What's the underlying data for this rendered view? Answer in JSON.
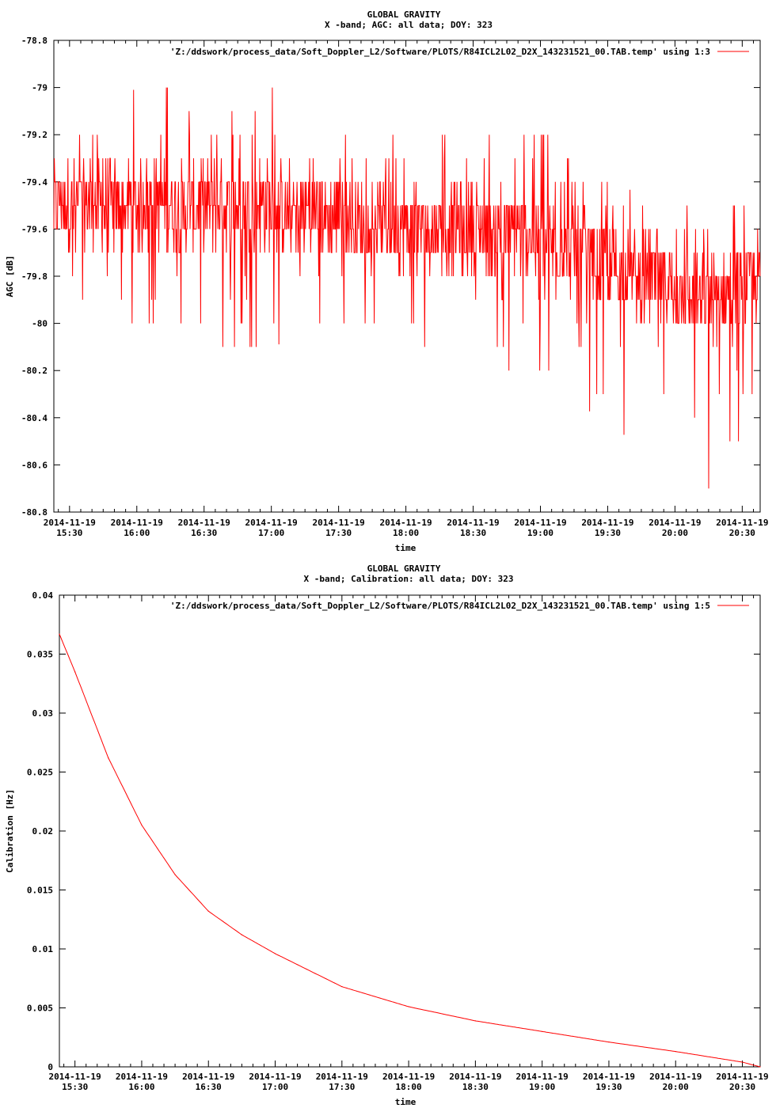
{
  "chart_data": [
    {
      "type": "line",
      "title": "GLOBAL GRAVITY",
      "subtitle": "X -band; AGC: all data; DOY: 323",
      "xlabel": "time",
      "ylabel": "AGC [dB]",
      "ylim": [
        -80.8,
        -78.8
      ],
      "xlim": [
        "2014-11-19 15:23",
        "2014-11-19 20:38"
      ],
      "yticks": [
        -78.8,
        -79,
        -79.2,
        -79.4,
        -79.6,
        -79.8,
        -80,
        -80.2,
        -80.4,
        -80.6,
        -80.8
      ],
      "ytick_labels": [
        "-78.8",
        "-79",
        "-79.2",
        "-79.4",
        "-79.6",
        "-79.8",
        "-80",
        "-80.2",
        "-80.4",
        "-80.6",
        "-80.8"
      ],
      "xticks": [
        "2014-11-19 15:30",
        "2014-11-19 16:00",
        "2014-11-19 16:30",
        "2014-11-19 17:00",
        "2014-11-19 17:30",
        "2014-11-19 18:00",
        "2014-11-19 18:30",
        "2014-11-19 19:00",
        "2014-11-19 19:30",
        "2014-11-19 20:00",
        "2014-11-19 20:30"
      ],
      "xtick_date": "2014-11-19",
      "xtick_times": [
        "15:30",
        "16:00",
        "16:30",
        "17:00",
        "17:30",
        "18:00",
        "18:30",
        "19:00",
        "19:30",
        "20:00",
        "20:30"
      ],
      "legend_position": "top-right",
      "grid": false,
      "color": "#ff0000",
      "series": [
        {
          "name": "'Z:/ddswork/process_data/Soft_Doppler_L2/Software/PLOTS/R84ICL2L02_D2X_143231521_00.TAB.temp' using 1:3",
          "x": [
            "2014-11-19 15:23",
            "2014-11-19 15:45",
            "2014-11-19 16:00",
            "2014-11-19 16:15",
            "2014-11-19 16:30",
            "2014-11-19 17:00",
            "2014-11-19 17:30",
            "2014-11-19 18:00",
            "2014-11-19 18:30",
            "2014-11-19 19:00",
            "2014-11-19 19:30",
            "2014-11-19 20:00",
            "2014-11-19 20:15",
            "2014-11-19 20:38"
          ],
          "values": [
            -79.5,
            -79.5,
            -79.5,
            -79.5,
            -79.5,
            -79.5,
            -79.55,
            -79.6,
            -79.6,
            -79.65,
            -79.75,
            -79.85,
            -79.9,
            -79.8
          ],
          "min": [
            -80.1,
            -80.0,
            -80.1,
            -80.0,
            -80.3,
            -80.1,
            -80.0,
            -80.1,
            -80.2,
            -80.3,
            -80.4,
            -80.7,
            -80.8,
            -80.6
          ],
          "max": [
            -79.2,
            -79.1,
            -79.0,
            -78.9,
            -79.1,
            -78.9,
            -79.1,
            -79.1,
            -79.2,
            -79.1,
            -79.4,
            -79.5,
            -79.4,
            -79.5
          ]
        }
      ]
    },
    {
      "type": "line",
      "title": "GLOBAL GRAVITY",
      "subtitle": "X -band; Calibration: all data; DOY: 323",
      "xlabel": "time",
      "ylabel": "Calibration [Hz]",
      "ylim": [
        0,
        0.04
      ],
      "xlim": [
        "2014-11-19 15:23",
        "2014-11-19 20:38"
      ],
      "yticks": [
        0,
        0.005,
        0.01,
        0.015,
        0.02,
        0.025,
        0.03,
        0.035,
        0.04
      ],
      "ytick_labels": [
        "0",
        "0.005",
        "0.01",
        "0.015",
        "0.02",
        "0.025",
        "0.03",
        "0.035",
        "0.04"
      ],
      "xticks": [
        "2014-11-19 15:30",
        "2014-11-19 16:00",
        "2014-11-19 16:30",
        "2014-11-19 17:00",
        "2014-11-19 17:30",
        "2014-11-19 18:00",
        "2014-11-19 18:30",
        "2014-11-19 19:00",
        "2014-11-19 19:30",
        "2014-11-19 20:00",
        "2014-11-19 20:30"
      ],
      "xtick_date": "2014-11-19",
      "xtick_times": [
        "15:30",
        "16:00",
        "16:30",
        "17:00",
        "17:30",
        "18:00",
        "18:30",
        "19:00",
        "19:30",
        "20:00",
        "20:30"
      ],
      "legend_position": "top-right",
      "grid": false,
      "color": "#ff0000",
      "series": [
        {
          "name": "'Z:/ddswork/process_data/Soft_Doppler_L2/Software/PLOTS/R84ICL2L02_D2X_143231521_00.TAB.temp' using 1:5",
          "x": [
            "2014-11-19 15:23",
            "2014-11-19 15:30",
            "2014-11-19 15:45",
            "2014-11-19 16:00",
            "2014-11-19 16:15",
            "2014-11-19 16:30",
            "2014-11-19 16:45",
            "2014-11-19 17:00",
            "2014-11-19 17:30",
            "2014-11-19 18:00",
            "2014-11-19 18:30",
            "2014-11-19 19:00",
            "2014-11-19 19:30",
            "2014-11-19 20:00",
            "2014-11-19 20:30",
            "2014-11-19 20:38"
          ],
          "values": [
            0.0367,
            0.0335,
            0.0262,
            0.0205,
            0.0163,
            0.0132,
            0.0112,
            0.0096,
            0.0068,
            0.0051,
            0.0039,
            0.003,
            0.0021,
            0.0013,
            0.0004,
            0.0
          ]
        }
      ]
    }
  ]
}
